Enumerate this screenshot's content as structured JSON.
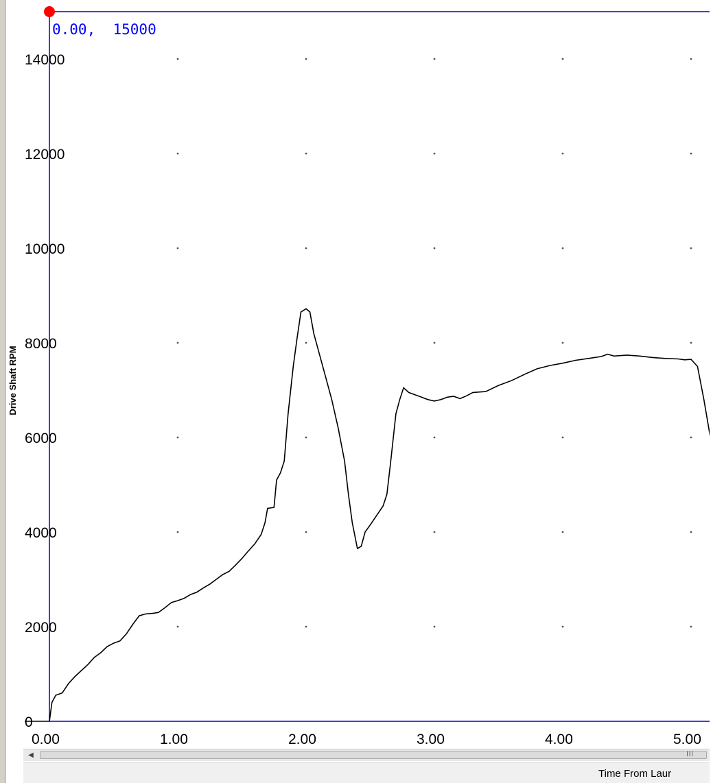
{
  "chart_data": {
    "type": "line",
    "title": "",
    "ylabel": "Drive Shaft RPM",
    "xlabel": "Time From Laur",
    "xlim": [
      0,
      5.15
    ],
    "ylim": [
      0,
      15000
    ],
    "x_ticks": [
      "0.00",
      "1.00",
      "2.00",
      "3.00",
      "4.00",
      "5.00"
    ],
    "x_tick_values": [
      0,
      1,
      2,
      3,
      4,
      5
    ],
    "y_ticks": [
      "0",
      "2000",
      "4000",
      "6000",
      "8000",
      "10000",
      "12000",
      "14000"
    ],
    "y_tick_values": [
      0,
      2000,
      4000,
      6000,
      8000,
      10000,
      12000,
      14000
    ],
    "grid": "dots",
    "cursor": {
      "x": 0.0,
      "y": 15000,
      "label": "0.00,  15000"
    },
    "series": [
      {
        "color": "#000000",
        "points": [
          [
            0.0,
            0
          ],
          [
            0.02,
            400
          ],
          [
            0.05,
            550
          ],
          [
            0.1,
            600
          ],
          [
            0.15,
            800
          ],
          [
            0.2,
            950
          ],
          [
            0.3,
            1200
          ],
          [
            0.35,
            1350
          ],
          [
            0.4,
            1450
          ],
          [
            0.45,
            1580
          ],
          [
            0.5,
            1650
          ],
          [
            0.55,
            1700
          ],
          [
            0.6,
            1850
          ],
          [
            0.65,
            2050
          ],
          [
            0.7,
            2230
          ],
          [
            0.75,
            2270
          ],
          [
            0.8,
            2280
          ],
          [
            0.85,
            2300
          ],
          [
            0.9,
            2400
          ],
          [
            0.95,
            2510
          ],
          [
            1.0,
            2550
          ],
          [
            1.05,
            2600
          ],
          [
            1.1,
            2680
          ],
          [
            1.15,
            2730
          ],
          [
            1.2,
            2820
          ],
          [
            1.25,
            2900
          ],
          [
            1.3,
            3000
          ],
          [
            1.35,
            3100
          ],
          [
            1.4,
            3170
          ],
          [
            1.45,
            3300
          ],
          [
            1.5,
            3440
          ],
          [
            1.55,
            3600
          ],
          [
            1.6,
            3750
          ],
          [
            1.65,
            3950
          ],
          [
            1.68,
            4200
          ],
          [
            1.7,
            4500
          ],
          [
            1.75,
            4520
          ],
          [
            1.77,
            5100
          ],
          [
            1.8,
            5250
          ],
          [
            1.83,
            5500
          ],
          [
            1.86,
            6500
          ],
          [
            1.9,
            7500
          ],
          [
            1.93,
            8100
          ],
          [
            1.96,
            8650
          ],
          [
            2.0,
            8720
          ],
          [
            2.03,
            8650
          ],
          [
            2.06,
            8200
          ],
          [
            2.1,
            7800
          ],
          [
            2.15,
            7300
          ],
          [
            2.2,
            6800
          ],
          [
            2.25,
            6200
          ],
          [
            2.3,
            5500
          ],
          [
            2.33,
            4800
          ],
          [
            2.36,
            4200
          ],
          [
            2.4,
            3650
          ],
          [
            2.43,
            3700
          ],
          [
            2.46,
            4000
          ],
          [
            2.5,
            4150
          ],
          [
            2.55,
            4350
          ],
          [
            2.6,
            4550
          ],
          [
            2.63,
            4800
          ],
          [
            2.66,
            5500
          ],
          [
            2.7,
            6500
          ],
          [
            2.73,
            6800
          ],
          [
            2.76,
            7050
          ],
          [
            2.8,
            6950
          ],
          [
            2.85,
            6900
          ],
          [
            2.9,
            6850
          ],
          [
            2.95,
            6800
          ],
          [
            3.0,
            6770
          ],
          [
            3.05,
            6800
          ],
          [
            3.1,
            6850
          ],
          [
            3.15,
            6870
          ],
          [
            3.2,
            6820
          ],
          [
            3.25,
            6880
          ],
          [
            3.3,
            6950
          ],
          [
            3.4,
            6970
          ],
          [
            3.5,
            7100
          ],
          [
            3.6,
            7200
          ],
          [
            3.7,
            7330
          ],
          [
            3.8,
            7450
          ],
          [
            3.9,
            7520
          ],
          [
            4.0,
            7570
          ],
          [
            4.1,
            7630
          ],
          [
            4.2,
            7670
          ],
          [
            4.3,
            7710
          ],
          [
            4.35,
            7760
          ],
          [
            4.4,
            7720
          ],
          [
            4.5,
            7740
          ],
          [
            4.6,
            7720
          ],
          [
            4.7,
            7690
          ],
          [
            4.8,
            7670
          ],
          [
            4.9,
            7660
          ],
          [
            4.95,
            7640
          ],
          [
            5.0,
            7650
          ],
          [
            5.05,
            7500
          ],
          [
            5.1,
            6800
          ],
          [
            5.15,
            6000
          ]
        ]
      }
    ]
  },
  "colors": {
    "axis": "#0000cc",
    "cursor_marker": "#ff0000",
    "cursor_text": "#0000ff",
    "series": "#000000",
    "grid_dots": "#555555"
  }
}
